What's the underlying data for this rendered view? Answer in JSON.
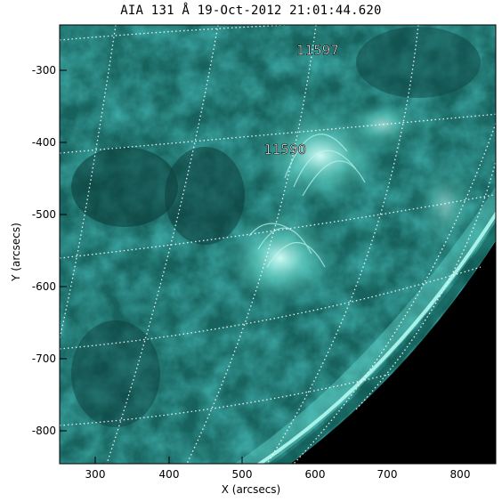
{
  "plot": {
    "title": "AIA 131 Å 19-Oct-2012 21:01:44.620",
    "xlabel": "X (arcsecs)",
    "ylabel": "Y (arcsecs)",
    "x_ticks": [
      "300",
      "400",
      "500",
      "600",
      "700",
      "800"
    ],
    "y_ticks": [
      "-300",
      "-400",
      "-500",
      "-600",
      "-700",
      "-800"
    ],
    "x_range": [
      250,
      850
    ],
    "y_range": [
      -845,
      -240
    ],
    "labels": [
      {
        "text": "11597",
        "x": 605,
        "y": -275
      },
      {
        "text": "11590",
        "x": 560,
        "y": -412
      }
    ]
  },
  "colors": {
    "image_base": "#1a6e68",
    "image_bright": "#c9fff6",
    "grid_line": "#ffffff",
    "frame_bg": "#ffffff"
  }
}
